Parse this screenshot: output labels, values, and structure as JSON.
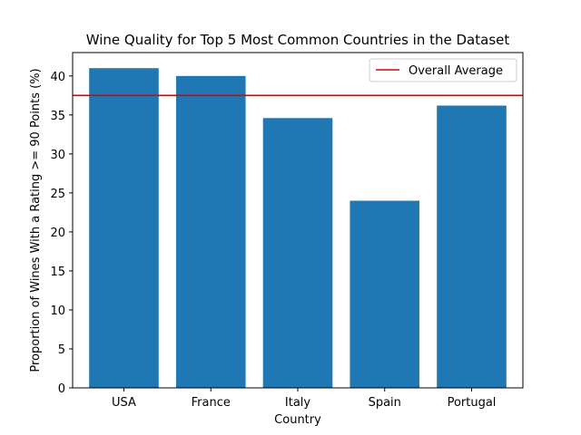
{
  "chart_data": {
    "type": "bar",
    "title": "Wine Quality for Top 5 Most Common Countries in the Dataset",
    "xlabel": "Country",
    "ylabel": "Proportion of Wines With a Rating >= 90 Points (%)",
    "categories": [
      "USA",
      "France",
      "Italy",
      "Spain",
      "Portugal"
    ],
    "values": [
      41.0,
      40.0,
      34.6,
      24.0,
      36.2
    ],
    "ylim": [
      0,
      43
    ],
    "yticks": [
      0,
      5,
      10,
      15,
      20,
      25,
      30,
      35,
      40
    ],
    "bar_color": "#1f77b4",
    "reference_line": {
      "label": "Overall Average",
      "value": 37.5,
      "color": "#e00000"
    },
    "legend_position": "upper-right",
    "grid": false
  }
}
